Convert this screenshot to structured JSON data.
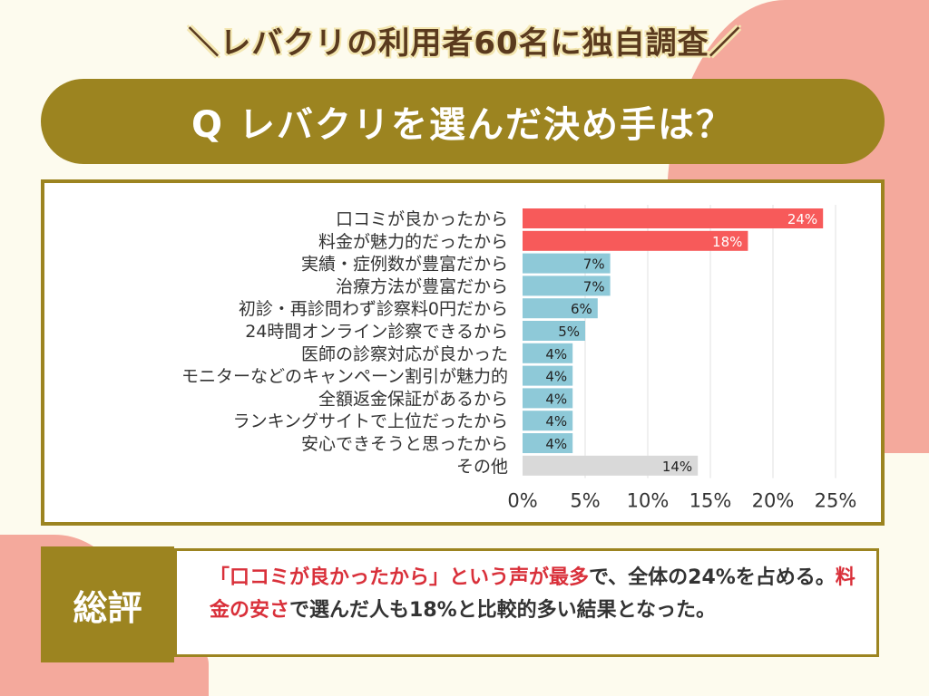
{
  "header": {
    "subtitle": "＼レバクリの利用者60名に独自調査／",
    "question": "Q レバクリを選んだ決め手は？"
  },
  "colors": {
    "highlight_bar": "#f75a5a",
    "normal_bar": "#8ec9d8",
    "other_bar": "#d9d9d9",
    "accent": "#9c8420",
    "highlight_text": "#d9303a"
  },
  "chart_data": {
    "type": "bar",
    "orientation": "horizontal",
    "categories": [
      "口コミが良かったから",
      "料金が魅力的だったから",
      "実績・症例数が豊富だから",
      "治療方法が豊富だから",
      "初診・再診問わず診察料0円だから",
      "24時間オンライン診察できるから",
      "医師の診察対応が良かった",
      "モニターなどのキャンペーン割引が魅力的",
      "全額返金保証があるから",
      "ランキングサイトで上位だったから",
      "安心できそうと思ったから",
      "その他"
    ],
    "values": [
      24,
      18,
      7,
      7,
      6,
      5,
      4,
      4,
      4,
      4,
      4,
      14
    ],
    "value_labels": [
      "24%",
      "18%",
      "7%",
      "7%",
      "6%",
      "5%",
      "4%",
      "4%",
      "4%",
      "4%",
      "4%",
      "14%"
    ],
    "bar_colors": [
      "#f75a5a",
      "#f75a5a",
      "#8ec9d8",
      "#8ec9d8",
      "#8ec9d8",
      "#8ec9d8",
      "#8ec9d8",
      "#8ec9d8",
      "#8ec9d8",
      "#8ec9d8",
      "#8ec9d8",
      "#d9d9d9"
    ],
    "xlim": [
      0,
      25
    ],
    "xticks": [
      "0%",
      "5%",
      "10%",
      "15%",
      "20%",
      "25%"
    ],
    "grid": true
  },
  "summary": {
    "label": "総評",
    "parts": [
      {
        "text": "「口コミが良かったから」という声が最多",
        "hl": true
      },
      {
        "text": "で、全体の24%を占める。",
        "hl": false
      },
      {
        "text": "料金の安さ",
        "hl": true
      },
      {
        "text": "で選んだ人も18%と比較的多い結果となった。",
        "hl": false
      }
    ]
  }
}
